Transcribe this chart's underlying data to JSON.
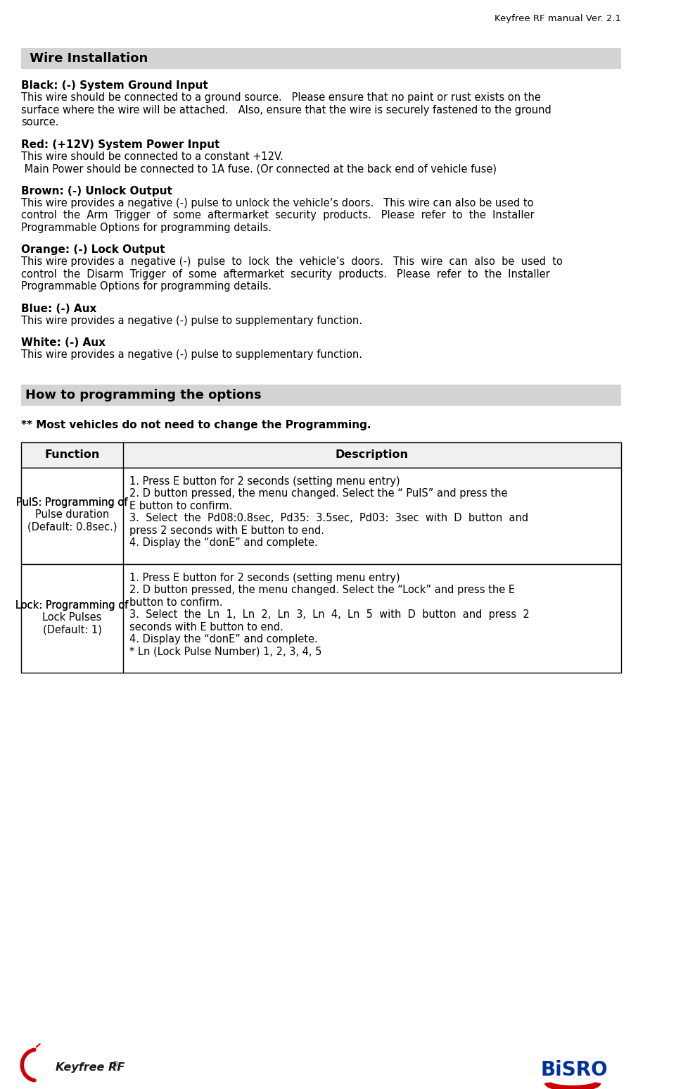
{
  "page_title": "Keyfree RF manual Ver. 2.1",
  "section1_title": " Wire Installation",
  "section1_bg": "#d3d3d3",
  "wire_entries": [
    {
      "label": "Black: (-) System Ground Input",
      "body_lines": [
        "This wire should be connected to a ground source.   Please ensure that no paint or rust exists on the",
        "surface where the wire will be attached.   Also, ensure that the wire is securely fastened to the ground",
        "source."
      ]
    },
    {
      "label": "Red: (+12V) System Power Input",
      "body_lines": [
        "This wire should be connected to a constant +12V.",
        " Main Power should be connected to 1A fuse. (Or connected at the back end of vehicle fuse)"
      ]
    },
    {
      "label": "Brown: (-) Unlock Output",
      "body_lines": [
        "This wire provides a negative (-) pulse to unlock the vehicle’s doors.   This wire can also be used to",
        "control  the  Arm  Trigger  of  some  aftermarket  security  products.   Please  refer  to  the  Installer",
        "Programmable Options for programming details."
      ]
    },
    {
      "label": "Orange: (-) Lock Output",
      "body_lines": [
        "This wire provides a  negative (-)  pulse  to  lock  the  vehicle’s  doors.   This  wire  can  also  be  used  to",
        "control  the  Disarm  Trigger  of  some  aftermarket  security  products.   Please  refer  to  the  Installer",
        "Programmable Options for programming details."
      ]
    },
    {
      "label": "Blue: (-) Aux",
      "body_lines": [
        "This wire provides a negative (-) pulse to supplementary function."
      ]
    },
    {
      "label": "White: (-) Aux",
      "body_lines": [
        "This wire provides a negative (-) pulse to supplementary function."
      ]
    }
  ],
  "section2_title": "How to programming the options",
  "section2_bg": "#d3d3d3",
  "section2_note": "** Most vehicles do not need to change the Programming.",
  "table_header": [
    "Function",
    "Description"
  ],
  "table_rows": [
    {
      "func_bold": "PulS:",
      "func_rest": " Programming of",
      "func_extra": [
        "Pulse duration",
        "(Default: 0.8sec.)"
      ],
      "desc_lines": [
        "1. Press E button for 2 seconds (setting menu entry)",
        "2. D button pressed, the menu changed. Select the “ PulS” and press the",
        "E button to confirm.",
        "3.  Select  the  Pd08:0.8sec,  Pd35:  3.5sec,  Pd03:  3sec  with  D  button  and",
        "press 2 seconds with E button to end.",
        "4. Display the “donE” and complete."
      ]
    },
    {
      "func_bold": "Lock:",
      "func_rest": " Programming of",
      "func_extra": [
        "Lock Pulses",
        "(Default: 1)"
      ],
      "desc_lines": [
        "1. Press E button for 2 seconds (setting menu entry)",
        "2. D button pressed, the menu changed. Select the “Lock” and press the E",
        "button to confirm.",
        "3.  Select  the  Ln  1,  Ln  2,  Ln  3,  Ln  4,  Ln  5  with  D  button  and  press  2",
        "seconds with E button to end.",
        "4. Display the “donE” and complete.",
        "* Ln (Lock Pulse Number) 1, 2, 3, 4, 5"
      ]
    }
  ],
  "bg_color": "#ffffff",
  "text_color": "#000000",
  "border_color": "#000000",
  "section_bg": "#d3d3d3"
}
